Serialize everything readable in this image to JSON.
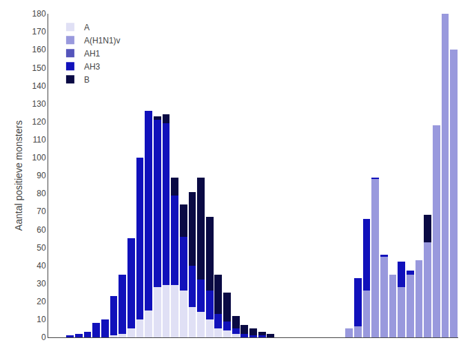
{
  "chart_data": {
    "type": "bar",
    "stacked": true,
    "ylabel": "Aantal positieve monsters",
    "categories": [
      null,
      null,
      null,
      null,
      null,
      null,
      null,
      null,
      null,
      null,
      null,
      null,
      null,
      null,
      null,
      null,
      null,
      null,
      null,
      null,
      null,
      null,
      null,
      null,
      null,
      null,
      null,
      null,
      null,
      null,
      null,
      null,
      null,
      null,
      null,
      null,
      null,
      null,
      null,
      null,
      null,
      null,
      null,
      null,
      null,
      null,
      null
    ],
    "series": [
      {
        "name": "A",
        "color": "#e0e0f5",
        "values": [
          0,
          0,
          0,
          0,
          0,
          0,
          0,
          1,
          2,
          5,
          10,
          15,
          28,
          29,
          29,
          26,
          17,
          14,
          10,
          5,
          4,
          2,
          0,
          0,
          0,
          0,
          null,
          null,
          null,
          null,
          null,
          null,
          null,
          null,
          null,
          null,
          null,
          null,
          null,
          null,
          null,
          null,
          null,
          null,
          null,
          null,
          null
        ]
      },
      {
        "name": "A(H1N1)v",
        "color": "#9999dd",
        "values": [
          null,
          null,
          null,
          null,
          null,
          null,
          null,
          null,
          null,
          null,
          null,
          null,
          null,
          null,
          null,
          null,
          null,
          null,
          null,
          null,
          null,
          null,
          null,
          null,
          null,
          null,
          null,
          null,
          null,
          null,
          null,
          null,
          null,
          null,
          5,
          6,
          26,
          88,
          45,
          35,
          28,
          35,
          43,
          53,
          118,
          180,
          160
        ]
      },
      {
        "name": "AH1",
        "color": "#5555bb",
        "values": [
          0,
          0,
          0,
          0,
          0,
          0,
          0,
          0,
          0,
          0,
          0,
          0,
          0,
          0,
          0,
          0,
          0,
          0,
          0,
          0,
          0,
          0,
          0,
          0,
          0,
          0,
          null,
          null,
          null,
          null,
          null,
          null,
          null,
          null,
          0,
          0,
          0,
          0,
          0,
          0,
          0,
          0,
          0,
          0,
          0,
          0,
          0
        ]
      },
      {
        "name": "AH3",
        "color": "#1111bb",
        "values": [
          0,
          0,
          1,
          2,
          3,
          8,
          10,
          22,
          33,
          50,
          90,
          111,
          93,
          90,
          50,
          30,
          23,
          18,
          16,
          8,
          5,
          3,
          2,
          1,
          1,
          0,
          null,
          null,
          null,
          null,
          null,
          null,
          null,
          null,
          0,
          27,
          40,
          1,
          1,
          0,
          14,
          2,
          0,
          0,
          0,
          0,
          0
        ]
      },
      {
        "name": "B",
        "color": "#0a0a44",
        "values": [
          0,
          0,
          0,
          0,
          0,
          0,
          0,
          0,
          0,
          0,
          0,
          0,
          2,
          5,
          10,
          18,
          41,
          57,
          41,
          22,
          16,
          7,
          5,
          4,
          2,
          2,
          null,
          null,
          null,
          null,
          null,
          null,
          null,
          null,
          0,
          0,
          0,
          0,
          0,
          0,
          0,
          0,
          0,
          15,
          0,
          0,
          0
        ]
      }
    ],
    "ylim": [
      0,
      180
    ],
    "yticks": [
      0,
      10,
      20,
      30,
      40,
      50,
      60,
      70,
      80,
      90,
      100,
      110,
      120,
      130,
      140,
      150,
      160,
      170,
      180
    ],
    "grid": false,
    "legend": "upper left",
    "tick_labels": "y"
  }
}
